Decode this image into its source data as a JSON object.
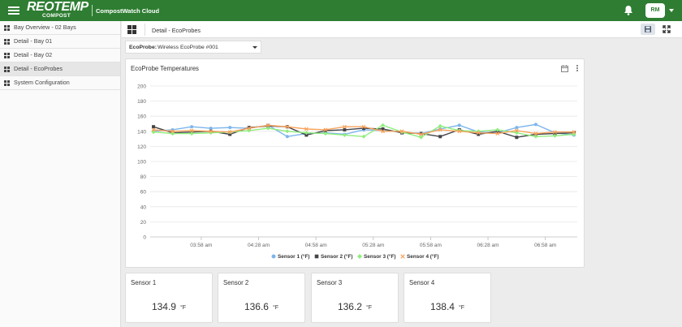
{
  "header": {
    "brand_main": "REOTEMP",
    "brand_sub": "COMPOST",
    "app_title": "CompostWatch Cloud",
    "user_initials": "RM",
    "accent_color": "#2e7d32"
  },
  "sidebar": {
    "items": [
      {
        "label": "Bay Overview - 02 Bays"
      },
      {
        "label": "Detail - Bay 01"
      },
      {
        "label": "Detail - Bay 02"
      },
      {
        "label": "Detail - EcoProbes",
        "active": true
      },
      {
        "label": "System Configuration"
      }
    ]
  },
  "page": {
    "breadcrumb": "Detail - EcoProbes"
  },
  "selector": {
    "label": "EcoProbe:",
    "value": "Wireless EcoProbe #001"
  },
  "chart_card": {
    "title": "EcoProbe Temperatures"
  },
  "chart_data": {
    "type": "line",
    "title": "EcoProbe Temperatures",
    "xlabel": "",
    "ylabel": "",
    "ylim": [
      0,
      200
    ],
    "yticks": [
      0,
      20,
      40,
      60,
      80,
      100,
      120,
      140,
      160,
      180,
      200
    ],
    "grid": true,
    "legend": "bottom",
    "x_tick_labels": [
      "03:58 am",
      "04:28 am",
      "04:58 am",
      "05:28 am",
      "05:58 am",
      "06:28 am",
      "06:58 am"
    ],
    "x_tick_index": [
      2.5,
      5.5,
      8.5,
      11.5,
      14.5,
      17.5,
      20.5
    ],
    "series": [
      {
        "name": "Sensor 1 (°F)",
        "color": "#7cb5ec",
        "marker": "circle",
        "values": [
          140,
          142,
          146,
          144,
          145,
          144,
          148,
          133,
          137,
          138,
          136,
          142,
          141,
          139,
          137,
          143,
          148,
          139,
          138,
          145,
          149,
          138,
          135
        ]
      },
      {
        "name": "Sensor 2 (°F)",
        "color": "#434348",
        "marker": "square",
        "values": [
          146,
          138,
          139,
          140,
          136,
          145,
          147,
          146,
          135,
          141,
          142,
          144,
          143,
          138,
          137,
          133,
          142,
          136,
          140,
          132,
          136,
          137,
          138
        ]
      },
      {
        "name": "Sensor 3 (°F)",
        "color": "#90ed7d",
        "marker": "diamond",
        "values": [
          139,
          137,
          137,
          138,
          139,
          141,
          144,
          140,
          138,
          137,
          135,
          133,
          148,
          139,
          132,
          147,
          141,
          140,
          142,
          138,
          133,
          134,
          136
        ]
      },
      {
        "name": "Sensor 4 (°F)",
        "color": "#f7a35c",
        "marker": "x",
        "values": [
          142,
          140,
          141,
          140,
          139,
          144,
          148,
          146,
          143,
          142,
          146,
          146,
          140,
          140,
          136,
          142,
          140,
          138,
          137,
          141,
          137,
          139,
          139
        ]
      }
    ]
  },
  "sensors": [
    {
      "title": "Sensor 1",
      "value": "134.9",
      "unit": "°F"
    },
    {
      "title": "Sensor 2",
      "value": "136.6",
      "unit": "°F"
    },
    {
      "title": "Sensor 3",
      "value": "136.2",
      "unit": "°F"
    },
    {
      "title": "Sensor 4",
      "value": "138.4",
      "unit": "°F"
    }
  ]
}
